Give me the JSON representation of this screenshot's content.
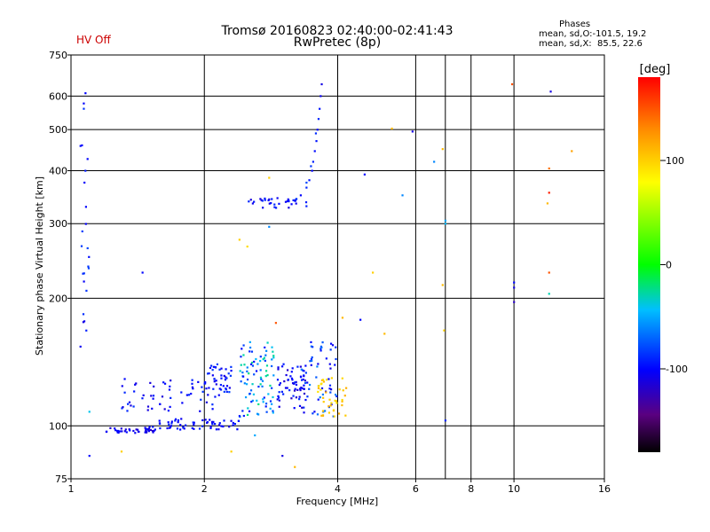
{
  "header": {
    "title": "Tromsø 20160823 02:40:00-02:41:43",
    "subtitle": "RwPretec (8p)",
    "status": "HV Off"
  },
  "phases": {
    "title": "Phases",
    "line1": "mean, sd,O:-101.5, 19.2",
    "line2": "mean, sd,X:  85.5, 22.6"
  },
  "colorbar": {
    "label": "[deg]",
    "ticks": [
      {
        "value": 100,
        "label": "100"
      },
      {
        "value": 0,
        "label": "0"
      },
      {
        "value": -100,
        "label": "-100"
      }
    ],
    "range": [
      -180,
      180
    ]
  },
  "chart_data": {
    "type": "scatter",
    "xlabel": "Frequency [MHz]",
    "ylabel": "Stationary phase Virtual Height [km]",
    "xscale": "log",
    "yscale": "log",
    "xlim": [
      1,
      16
    ],
    "ylim": [
      75,
      750
    ],
    "xticks": [
      {
        "value": 1,
        "label": "1"
      },
      {
        "value": 2,
        "label": "2"
      },
      {
        "value": 4,
        "label": "4"
      },
      {
        "value": 6,
        "label": "6"
      },
      {
        "value": 8,
        "label": "8"
      },
      {
        "value": 10,
        "label": "10"
      },
      {
        "value": 16,
        "label": "16"
      }
    ],
    "xgrid": [
      2,
      4,
      6,
      7,
      8,
      10
    ],
    "yticks": [
      {
        "value": 75,
        "label": "75"
      },
      {
        "value": 100,
        "label": "100"
      },
      {
        "value": 200,
        "label": "200"
      },
      {
        "value": 300,
        "label": "300"
      },
      {
        "value": 400,
        "label": "400"
      },
      {
        "value": 500,
        "label": "500"
      },
      {
        "value": 600,
        "label": "600"
      },
      {
        "value": 750,
        "label": "750"
      }
    ],
    "ygrid": [
      100,
      200,
      300,
      400,
      500,
      600
    ],
    "point_groups": [
      {
        "x_range": [
          1.2,
          1.55
        ],
        "y_range": [
          96,
          99
        ],
        "n": 40,
        "phase_range": [
          -120,
          -95
        ]
      },
      {
        "x_range": [
          1.5,
          2.4
        ],
        "y_range": [
          98,
          104
        ],
        "n": 60,
        "phase_range": [
          -110,
          -90
        ]
      },
      {
        "x_range": [
          1.3,
          2.2
        ],
        "y_range": [
          108,
          130
        ],
        "n": 60,
        "phase_range": [
          -115,
          -85
        ]
      },
      {
        "x_range": [
          2.0,
          2.3
        ],
        "y_range": [
          120,
          140
        ],
        "n": 40,
        "phase_range": [
          -110,
          -80
        ]
      },
      {
        "x_range": [
          2.4,
          2.9
        ],
        "y_range": [
          105,
          160
        ],
        "n": 90,
        "phase_range": [
          -100,
          -20
        ]
      },
      {
        "x_range": [
          2.9,
          3.4
        ],
        "y_range": [
          110,
          140
        ],
        "n": 60,
        "phase_range": [
          -120,
          -85
        ]
      },
      {
        "x_range": [
          3.3,
          4.0
        ],
        "y_range": [
          105,
          160
        ],
        "n": 60,
        "phase_range": [
          -110,
          -60
        ]
      },
      {
        "x_range": [
          3.6,
          4.2
        ],
        "y_range": [
          105,
          130
        ],
        "n": 40,
        "phase_range": [
          90,
          115
        ]
      },
      {
        "x_range": [
          2.5,
          3.4
        ],
        "y_range": [
          327,
          345
        ],
        "n": 35,
        "phase_range": [
          -115,
          -85
        ]
      },
      {
        "x_range": [
          1.05,
          1.1
        ],
        "y_range": [
          150,
          650
        ],
        "n": 25,
        "phase_range": [
          -110,
          -80
        ]
      }
    ],
    "curve_points": [
      {
        "x": 3.2,
        "y": 340,
        "phase": -95
      },
      {
        "x": 3.3,
        "y": 350,
        "phase": -100
      },
      {
        "x": 3.4,
        "y": 365,
        "phase": -90
      },
      {
        "x": 3.45,
        "y": 380,
        "phase": -95
      },
      {
        "x": 3.5,
        "y": 400,
        "phase": -100
      },
      {
        "x": 3.52,
        "y": 420,
        "phase": -92
      },
      {
        "x": 3.55,
        "y": 445,
        "phase": -98
      },
      {
        "x": 3.58,
        "y": 470,
        "phase": -95
      },
      {
        "x": 3.6,
        "y": 500,
        "phase": -100
      },
      {
        "x": 3.62,
        "y": 530,
        "phase": -90
      },
      {
        "x": 3.64,
        "y": 560,
        "phase": -95
      },
      {
        "x": 3.66,
        "y": 600,
        "phase": -105
      },
      {
        "x": 3.68,
        "y": 640,
        "phase": -110
      },
      {
        "x": 3.4,
        "y": 375,
        "phase": -80
      },
      {
        "x": 3.48,
        "y": 410,
        "phase": -85
      },
      {
        "x": 3.57,
        "y": 490,
        "phase": -88
      }
    ],
    "scattered_points": [
      {
        "x": 1.45,
        "y": 230,
        "phase": -100
      },
      {
        "x": 1.1,
        "y": 85,
        "phase": -100
      },
      {
        "x": 1.1,
        "y": 108,
        "phase": -40
      },
      {
        "x": 2.4,
        "y": 275,
        "phase": 100
      },
      {
        "x": 2.5,
        "y": 265,
        "phase": 95
      },
      {
        "x": 2.8,
        "y": 295,
        "phase": -60
      },
      {
        "x": 2.8,
        "y": 385,
        "phase": 100
      },
      {
        "x": 2.9,
        "y": 175,
        "phase": 150
      },
      {
        "x": 3.0,
        "y": 85,
        "phase": -110
      },
      {
        "x": 3.2,
        "y": 80,
        "phase": 110
      },
      {
        "x": 2.6,
        "y": 95,
        "phase": -50
      },
      {
        "x": 2.3,
        "y": 87,
        "phase": 100
      },
      {
        "x": 1.3,
        "y": 87,
        "phase": 100
      },
      {
        "x": 4.1,
        "y": 180,
        "phase": 110
      },
      {
        "x": 4.5,
        "y": 178,
        "phase": -100
      },
      {
        "x": 4.6,
        "y": 392,
        "phase": -100
      },
      {
        "x": 4.8,
        "y": 230,
        "phase": 100
      },
      {
        "x": 5.1,
        "y": 165,
        "phase": 110
      },
      {
        "x": 5.3,
        "y": 503,
        "phase": 110
      },
      {
        "x": 5.6,
        "y": 350,
        "phase": -60
      },
      {
        "x": 5.9,
        "y": 495,
        "phase": -110
      },
      {
        "x": 6.6,
        "y": 420,
        "phase": -60
      },
      {
        "x": 6.9,
        "y": 450,
        "phase": 110
      },
      {
        "x": 6.9,
        "y": 215,
        "phase": 110
      },
      {
        "x": 6.95,
        "y": 168,
        "phase": 100
      },
      {
        "x": 7.0,
        "y": 305,
        "phase": -50
      },
      {
        "x": 7.0,
        "y": 300,
        "phase": -45
      },
      {
        "x": 7.0,
        "y": 103,
        "phase": -90
      },
      {
        "x": 9.9,
        "y": 640,
        "phase": 150
      },
      {
        "x": 10.0,
        "y": 218,
        "phase": -100
      },
      {
        "x": 10.0,
        "y": 212,
        "phase": -110
      },
      {
        "x": 10.0,
        "y": 196,
        "phase": -120
      },
      {
        "x": 11.9,
        "y": 335,
        "phase": 110
      },
      {
        "x": 12.0,
        "y": 405,
        "phase": 140
      },
      {
        "x": 12.0,
        "y": 355,
        "phase": 170
      },
      {
        "x": 12.0,
        "y": 230,
        "phase": 150
      },
      {
        "x": 12.0,
        "y": 205,
        "phase": -30
      },
      {
        "x": 12.1,
        "y": 615,
        "phase": -110
      },
      {
        "x": 13.5,
        "y": 445,
        "phase": 120
      }
    ]
  }
}
